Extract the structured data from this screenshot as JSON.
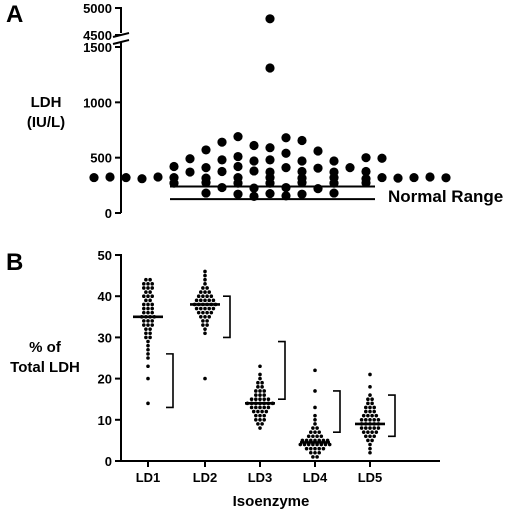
{
  "chart_data": [
    {
      "panel_label": "A",
      "type": "scatter",
      "ylabel_line1": "LDH",
      "ylabel_line2": "(IU/L)",
      "y_ticks_lower": [
        0,
        500,
        1000,
        1500
      ],
      "y_ticks_upper": [
        4500,
        5000
      ],
      "ylim_lower": [
        0,
        1500
      ],
      "ylim_upper": [
        4500,
        5000
      ],
      "axis_break": true,
      "normal_range_label": "Normal Range",
      "normal_range": [
        125,
        240
      ],
      "points": [
        {
          "x": 0,
          "y": 4800
        },
        {
          "x": 0,
          "y": 1310
        },
        {
          "x": -2,
          "y": 690
        },
        {
          "x": 1,
          "y": 680
        },
        {
          "x": 2,
          "y": 655
        },
        {
          "x": -3,
          "y": 640
        },
        {
          "x": -1,
          "y": 610
        },
        {
          "x": 0,
          "y": 590
        },
        {
          "x": -4,
          "y": 570
        },
        {
          "x": 3,
          "y": 560
        },
        {
          "x": 1,
          "y": 540
        },
        {
          "x": -2,
          "y": 510
        },
        {
          "x": -5,
          "y": 490
        },
        {
          "x": -3,
          "y": 480
        },
        {
          "x": -1,
          "y": 470
        },
        {
          "x": 0,
          "y": 480
        },
        {
          "x": 2,
          "y": 470
        },
        {
          "x": 4,
          "y": 470
        },
        {
          "x": 6,
          "y": 500
        },
        {
          "x": 7,
          "y": 495
        },
        {
          "x": -6,
          "y": 420
        },
        {
          "x": -4,
          "y": 410
        },
        {
          "x": -2,
          "y": 420
        },
        {
          "x": 1,
          "y": 410
        },
        {
          "x": 3,
          "y": 405
        },
        {
          "x": 5,
          "y": 410
        },
        {
          "x": -5,
          "y": 370
        },
        {
          "x": -3,
          "y": 375
        },
        {
          "x": -1,
          "y": 380
        },
        {
          "x": 0,
          "y": 370
        },
        {
          "x": 2,
          "y": 375
        },
        {
          "x": 4,
          "y": 370
        },
        {
          "x": 6,
          "y": 375
        },
        {
          "x": -11,
          "y": 320
        },
        {
          "x": -10,
          "y": 325
        },
        {
          "x": -9,
          "y": 320
        },
        {
          "x": -8,
          "y": 310
        },
        {
          "x": -7,
          "y": 325
        },
        {
          "x": -6,
          "y": 320
        },
        {
          "x": -4,
          "y": 315
        },
        {
          "x": -2,
          "y": 320
        },
        {
          "x": 0,
          "y": 320
        },
        {
          "x": 2,
          "y": 315
        },
        {
          "x": 4,
          "y": 320
        },
        {
          "x": 6,
          "y": 310
        },
        {
          "x": 7,
          "y": 320
        },
        {
          "x": 8,
          "y": 315
        },
        {
          "x": 9,
          "y": 320
        },
        {
          "x": 10,
          "y": 325
        },
        {
          "x": 11,
          "y": 318
        },
        {
          "x": -6,
          "y": 270
        },
        {
          "x": -4,
          "y": 275
        },
        {
          "x": -2,
          "y": 270
        },
        {
          "x": 0,
          "y": 270
        },
        {
          "x": 2,
          "y": 275
        },
        {
          "x": 4,
          "y": 270
        },
        {
          "x": 6,
          "y": 272
        },
        {
          "x": -3,
          "y": 230
        },
        {
          "x": -1,
          "y": 225
        },
        {
          "x": 1,
          "y": 230
        },
        {
          "x": 3,
          "y": 220
        },
        {
          "x": -4,
          "y": 180
        },
        {
          "x": -2,
          "y": 170
        },
        {
          "x": 0,
          "y": 175
        },
        {
          "x": 2,
          "y": 170
        },
        {
          "x": 4,
          "y": 180
        },
        {
          "x": -1,
          "y": 150
        },
        {
          "x": 1,
          "y": 155
        }
      ]
    },
    {
      "panel_label": "B",
      "type": "scatter",
      "xlabel": "Isoenzyme",
      "ylabel_line1": "% of",
      "ylabel_line2": "Total LDH",
      "categories": [
        "LD1",
        "LD2",
        "LD3",
        "LD4",
        "LD5"
      ],
      "ylim": [
        0,
        50
      ],
      "y_ticks": [
        0,
        10,
        20,
        30,
        40,
        50
      ],
      "medians": [
        35,
        38,
        14,
        4.5,
        9
      ],
      "normal_ranges": [
        [
          13,
          26
        ],
        [
          30,
          40
        ],
        [
          15,
          29
        ],
        [
          7,
          17
        ],
        [
          6,
          16
        ]
      ],
      "series": [
        {
          "values": [
            44,
            44,
            43,
            43,
            43,
            42,
            42,
            42,
            41,
            41,
            40,
            40,
            40,
            39,
            39,
            38,
            38,
            38,
            37,
            37,
            37,
            36,
            36,
            36,
            35,
            35,
            35,
            35,
            34,
            34,
            34,
            33,
            33,
            33,
            32,
            32,
            31,
            31,
            30,
            30,
            29,
            28,
            27,
            26,
            25,
            23,
            20,
            14
          ]
        },
        {
          "values": [
            46,
            45,
            44,
            43,
            42,
            42,
            41,
            41,
            41,
            40,
            40,
            40,
            40,
            39,
            39,
            39,
            39,
            39,
            38,
            38,
            38,
            38,
            38,
            38,
            37,
            37,
            37,
            37,
            37,
            36,
            36,
            36,
            36,
            35,
            35,
            35,
            34,
            34,
            33,
            33,
            32,
            31,
            20
          ]
        },
        {
          "values": [
            23,
            21,
            20,
            19,
            19,
            18,
            18,
            17,
            17,
            17,
            16,
            16,
            16,
            15,
            15,
            15,
            15,
            15,
            14,
            14,
            14,
            14,
            14,
            14,
            14,
            13,
            13,
            13,
            13,
            13,
            12,
            12,
            12,
            12,
            11,
            11,
            11,
            10,
            10,
            10,
            9,
            9,
            8
          ]
        },
        {
          "values": [
            22,
            17,
            13,
            11,
            10,
            9,
            8,
            8,
            7,
            7,
            7,
            6,
            6,
            6,
            6,
            5,
            5,
            5,
            5,
            5,
            5,
            5,
            4,
            4,
            4,
            4,
            4,
            4,
            4,
            4,
            3,
            3,
            3,
            3,
            3,
            2,
            2,
            2,
            1,
            1
          ]
        },
        {
          "values": [
            21,
            18,
            16,
            15,
            15,
            14,
            14,
            13,
            13,
            13,
            12,
            12,
            12,
            11,
            11,
            11,
            11,
            10,
            10,
            10,
            10,
            10,
            9,
            9,
            9,
            9,
            9,
            8,
            8,
            8,
            8,
            8,
            7,
            7,
            7,
            7,
            6,
            6,
            6,
            5,
            5,
            4,
            3,
            2
          ]
        }
      ]
    }
  ]
}
